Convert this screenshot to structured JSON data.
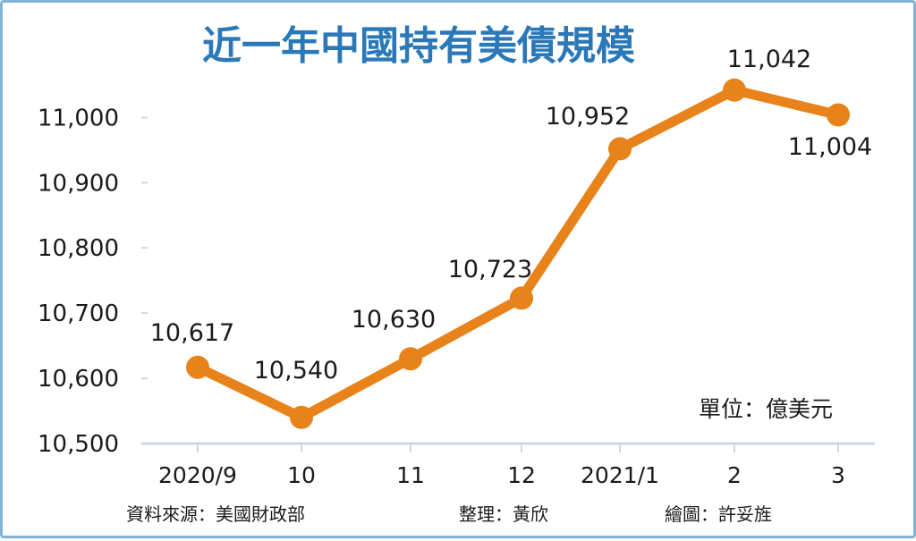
{
  "chart_data": {
    "type": "line",
    "title": "近一年中國持有美債規模",
    "unit_note": "單位：億美元",
    "categories": [
      "2020/9",
      "10",
      "11",
      "12",
      "2021/1",
      "2",
      "3"
    ],
    "series": [
      {
        "values": [
          10617,
          10540,
          10630,
          10723,
          10952,
          11042,
          11004
        ]
      }
    ],
    "data_labels": [
      "10,617",
      "10,540",
      "10,630",
      "10,723",
      "10,952",
      "11,042",
      "11,004"
    ],
    "yticks": [
      "11,000",
      "10,900",
      "10,800",
      "10,700",
      "10,600",
      "10,500"
    ],
    "ytick_values": [
      11000,
      10900,
      10800,
      10700,
      10600,
      10500
    ],
    "ylim": [
      10500,
      11040
    ],
    "grid": false,
    "xlabel": "",
    "ylabel": "",
    "colors": {
      "line": "#e8821a",
      "title": "#2b78b8",
      "axis": "#c9d8e6",
      "border": "#7fb3d5",
      "text": "#1a1a1a"
    }
  },
  "footer": {
    "source": "資料來源：美國財政部",
    "editor": "整理：黃欣",
    "artist": "繪圖：許妥旌"
  }
}
